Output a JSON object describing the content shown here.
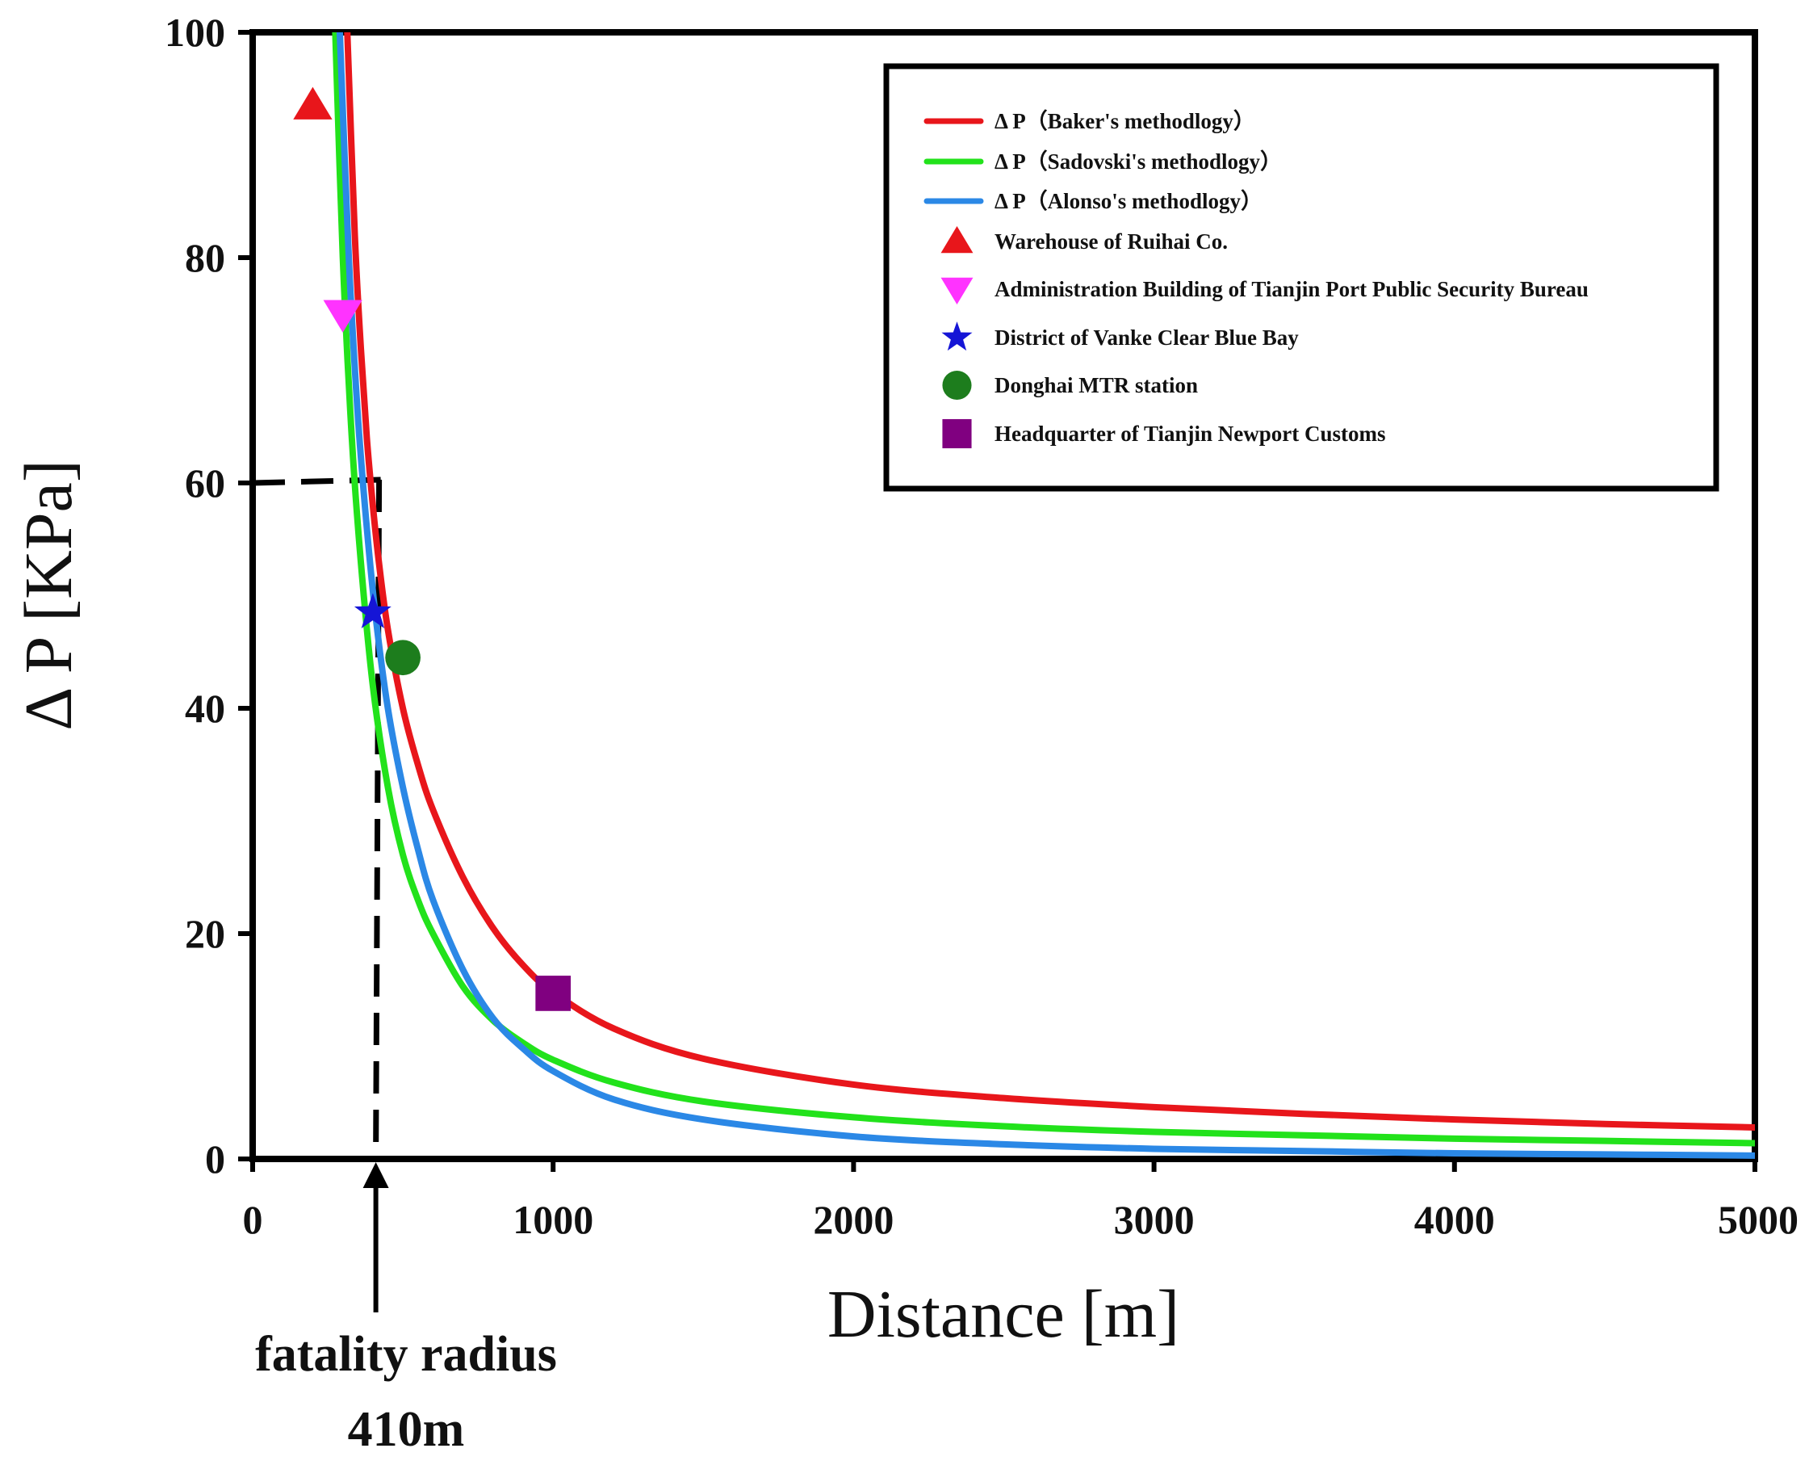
{
  "chart_data": {
    "type": "line",
    "title": "",
    "xlabel": "Distance [m]",
    "ylabel": "Δ P [KPa]",
    "xlim": [
      0,
      5000
    ],
    "ylim": [
      0,
      100
    ],
    "xticks": [
      0,
      1000,
      2000,
      3000,
      4000,
      5000
    ],
    "yticks": [
      0,
      20,
      40,
      60,
      80,
      100
    ],
    "xtick_labels": [
      "0",
      "1000",
      "2000",
      "3000",
      "4000",
      "5000"
    ],
    "ytick_labels": [
      "0",
      "20",
      "40",
      "60",
      "80",
      "100"
    ],
    "grid": false,
    "legend_position": "top-right",
    "series": [
      {
        "name": "Δ P（Baker's methodlogy）",
        "color": "#e8161b",
        "x": [
          315,
          340,
          360,
          380,
          400,
          420,
          450,
          500,
          550,
          600,
          700,
          800,
          900,
          1000,
          1200,
          1500,
          2000,
          2500,
          3000,
          3500,
          4000,
          4500,
          5000
        ],
        "y": [
          100,
          82,
          72,
          64,
          58,
          53,
          47,
          40,
          35,
          31,
          25,
          20.5,
          17.2,
          14.8,
          11.6,
          8.9,
          6.6,
          5.4,
          4.6,
          4.0,
          3.5,
          3.1,
          2.8
        ]
      },
      {
        "name": "Δ P（Sadovski's methodlogy）",
        "color": "#22e21b",
        "x": [
          275,
          300,
          330,
          360,
          400,
          450,
          500,
          550,
          600,
          700,
          800,
          900,
          1000,
          1200,
          1500,
          2000,
          2500,
          3000,
          3500,
          4000,
          4500,
          5000
        ],
        "y": [
          100,
          80,
          64,
          53,
          42,
          33,
          27,
          23,
          20,
          15.3,
          12.3,
          10.3,
          8.8,
          6.8,
          5.1,
          3.7,
          2.9,
          2.4,
          2.1,
          1.8,
          1.6,
          1.4
        ]
      },
      {
        "name": "Δ P（Alonso's methodlogy）",
        "color": "#2b88e6",
        "x": [
          290,
          320,
          350,
          380,
          410,
          450,
          500,
          550,
          600,
          700,
          800,
          900,
          1000,
          1200,
          1500,
          2000,
          2500,
          3000,
          3500,
          4000,
          4500,
          5000
        ],
        "y": [
          100,
          80,
          66,
          56,
          48,
          40,
          33,
          27.5,
          23,
          16.8,
          12.5,
          9.8,
          7.8,
          5.3,
          3.5,
          2.0,
          1.3,
          0.9,
          0.7,
          0.5,
          0.4,
          0.3
        ]
      }
    ],
    "markers": [
      {
        "name": "Warehouse of Ruihai Co.",
        "shape": "triangle-up",
        "color": "#e8161b",
        "x": 200,
        "y": 93.5
      },
      {
        "name": "Administration Building of Tianjin Port Public Security Bureau",
        "shape": "triangle-down",
        "color": "#ff33ff",
        "x": 300,
        "y": 75
      },
      {
        "name": "District of Vanke Clear Blue Bay",
        "shape": "star",
        "color": "#1515d6",
        "x": 400,
        "y": 48.5
      },
      {
        "name": "Donghai MTR station",
        "shape": "circle",
        "color": "#1d7d1d",
        "x": 500,
        "y": 44.5
      },
      {
        "name": "Headquarter of Tianjin Newport Customs",
        "shape": "square",
        "color": "#800080",
        "x": 1000,
        "y": 14.7
      }
    ],
    "annotation": {
      "threshold_y": 60,
      "fatality_x": 410,
      "line1": "fatality radius",
      "line2": "410m"
    }
  }
}
